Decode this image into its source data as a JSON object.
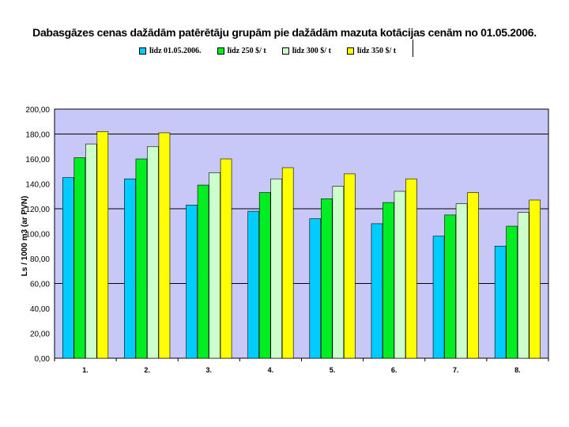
{
  "colors": {
    "plot_background": "#c8c8f8",
    "gridline": "#000000",
    "series": [
      "#00ccff",
      "#00ee22",
      "#ccffcc",
      "#ffff00"
    ]
  },
  "chart_data": {
    "type": "bar",
    "title": "Dabasgāzes  cenas dažādām patērētāju grupām pie dažādām mazuta kotācijas cenām no 01.05.2006.",
    "xlabel": "",
    "ylabel": "Ls / 1000 m3 (ar PVN)",
    "ylim": [
      0,
      200
    ],
    "yticks": [
      "0,00",
      "20,00",
      "40,00",
      "60,00",
      "80,00",
      "100,00",
      "120,00",
      "140,00",
      "160,00",
      "180,00",
      "200,00"
    ],
    "grid": true,
    "legend_position": "top",
    "categories": [
      "1.",
      "2.",
      "3.",
      "4.",
      "5.",
      "6.",
      "7.",
      "8."
    ],
    "series": [
      {
        "name": "līdz 01.05.2006.",
        "values": [
          145,
          144,
          123,
          118,
          112,
          108,
          98,
          90
        ]
      },
      {
        "name": "līdz 250 $/ t",
        "values": [
          161,
          160,
          139,
          133,
          128,
          125,
          115,
          106
        ]
      },
      {
        "name": "līdz 300 $/ t",
        "values": [
          172,
          170,
          149,
          144,
          138,
          134,
          124,
          117
        ]
      },
      {
        "name": "līdz 350 $/ t",
        "values": [
          182,
          181,
          160,
          153,
          148,
          144,
          133,
          127
        ]
      }
    ]
  }
}
